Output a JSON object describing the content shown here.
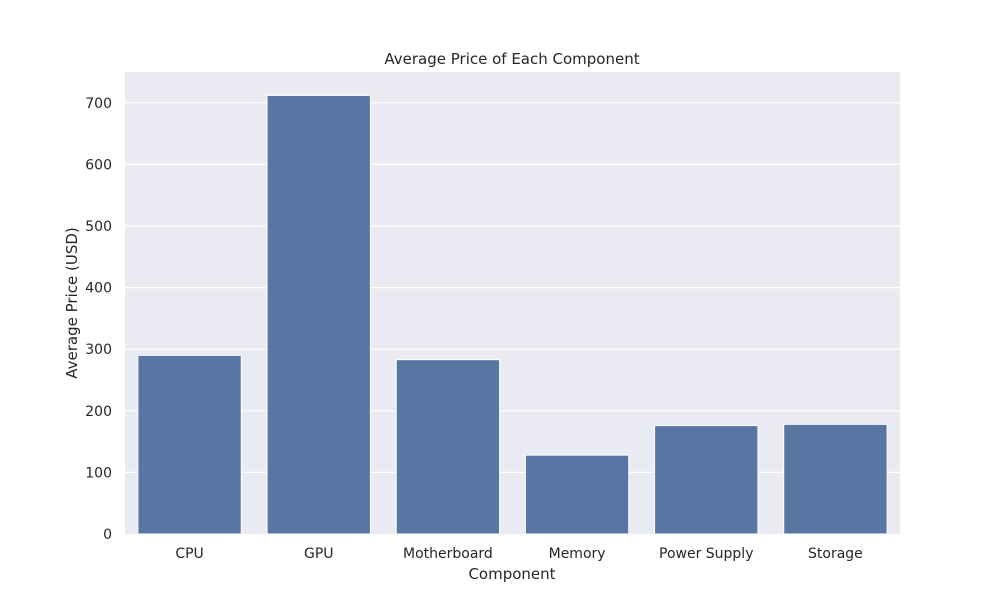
{
  "chart_data": {
    "type": "bar",
    "title": "Average Price of Each Component",
    "xlabel": "Component",
    "ylabel": "Average Price (USD)",
    "categories": [
      "CPU",
      "GPU",
      "Motherboard",
      "Memory",
      "Power Supply",
      "Storage"
    ],
    "values": [
      290,
      712,
      283,
      128,
      176,
      178
    ],
    "ylim": [
      0,
      750
    ],
    "yticks": [
      0,
      100,
      200,
      300,
      400,
      500,
      600,
      700
    ],
    "grid": true,
    "legend": "none",
    "colors": {
      "bar": "#5875a4",
      "plot_background": "#eaeaf2",
      "grid": "#ffffff",
      "text": "#262626"
    }
  }
}
